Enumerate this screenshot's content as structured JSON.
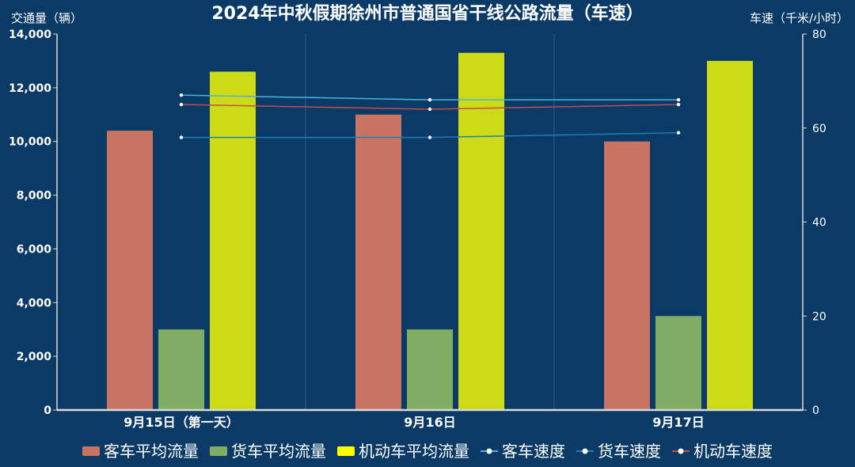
{
  "title": "2024年中秋假期徐州市普通国省干线公路流量（车速）",
  "colors": {
    "background": "#0b3a66",
    "axis": "#d9d9d9",
    "text": "#ffffff",
    "gridline": "#2d5f8d"
  },
  "chart_data": {
    "type": "bar",
    "title": "2024年中秋假期徐州市普通国省干线公路流量（车速）",
    "xlabel": "",
    "ylabel": "交通量（辆）",
    "y2label": "车速（千米/小时）",
    "categories": [
      "9月15日（第一天）",
      "9月16日",
      "9月17日"
    ],
    "ylim": [
      0,
      14000
    ],
    "y2lim": [
      0,
      80
    ],
    "y_ticks": [
      "0",
      "2,000",
      "4,000",
      "6,000",
      "8,000",
      "10,000",
      "12,000",
      "14,000"
    ],
    "y2_ticks": [
      "0",
      "20",
      "40",
      "60",
      "80"
    ],
    "grid": "vertical",
    "legend_position": "bottom",
    "bar_series": [
      {
        "name": "客车平均流量",
        "color": "#c97463",
        "values": [
          10400,
          11000,
          10000
        ]
      },
      {
        "name": "货车平均流量",
        "color": "#7fad63",
        "values": [
          3000,
          3000,
          3500
        ]
      },
      {
        "name": "机动车平均流量",
        "color": "#cddb17",
        "legend_color": "#ffff00",
        "values": [
          12600,
          13300,
          13000
        ]
      }
    ],
    "line_series": [
      {
        "name": "客车速度",
        "color": "#4ab5d8",
        "axis": "right",
        "values": [
          67,
          66,
          66
        ]
      },
      {
        "name": "货车速度",
        "color": "#1c7fb8",
        "axis": "right",
        "values": [
          58,
          58,
          59
        ]
      },
      {
        "name": "机动车速度",
        "color": "#c0504d",
        "axis": "right",
        "values": [
          65,
          64,
          65
        ]
      }
    ]
  }
}
